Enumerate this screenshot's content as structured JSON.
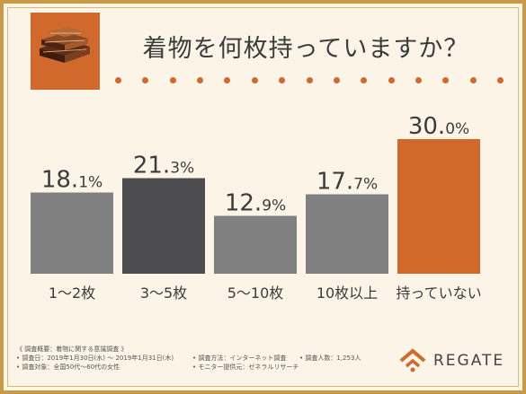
{
  "chart_data": {
    "type": "bar",
    "title": "着物を何枚持っていますか？",
    "categories": [
      "1〜2枚",
      "3〜5枚",
      "5〜10枚",
      "10枚以上",
      "持っていない"
    ],
    "values": [
      18.1,
      21.3,
      12.9,
      17.7,
      30.0
    ],
    "value_labels": [
      {
        "int": "18.",
        "dec": "1%"
      },
      {
        "int": "21.",
        "dec": "3%"
      },
      {
        "int": "12.",
        "dec": "9%"
      },
      {
        "int": "17.",
        "dec": "7%"
      },
      {
        "int": "30.",
        "dec": "0%"
      }
    ],
    "unit": "%",
    "ylim": [
      0,
      30
    ],
    "grid": false,
    "colors": [
      "#808080",
      "#4d4d4f",
      "#808080",
      "#808080",
      "#d0692b"
    ]
  },
  "footer": {
    "heading": "《 調査概要：着物に関する意識調査 》",
    "date": "• 調査日：2019年1月30日(水) 〜 2019年1月31日(木)",
    "method": "• 調査方法：インターネット調査",
    "count": "• 調査人数：1,253人",
    "target": "• 調査対象：全国50代〜60代の女性",
    "provider": "• モニター提供元：ゼネラルリサーチ"
  },
  "logo": {
    "text": "REGATE",
    "icon": "regate-house-icon",
    "color": "#d0692b"
  },
  "decor": {
    "badge_icon": "kimono-fabric-icon",
    "accent": "#d0692b",
    "border": "#c79a45"
  }
}
